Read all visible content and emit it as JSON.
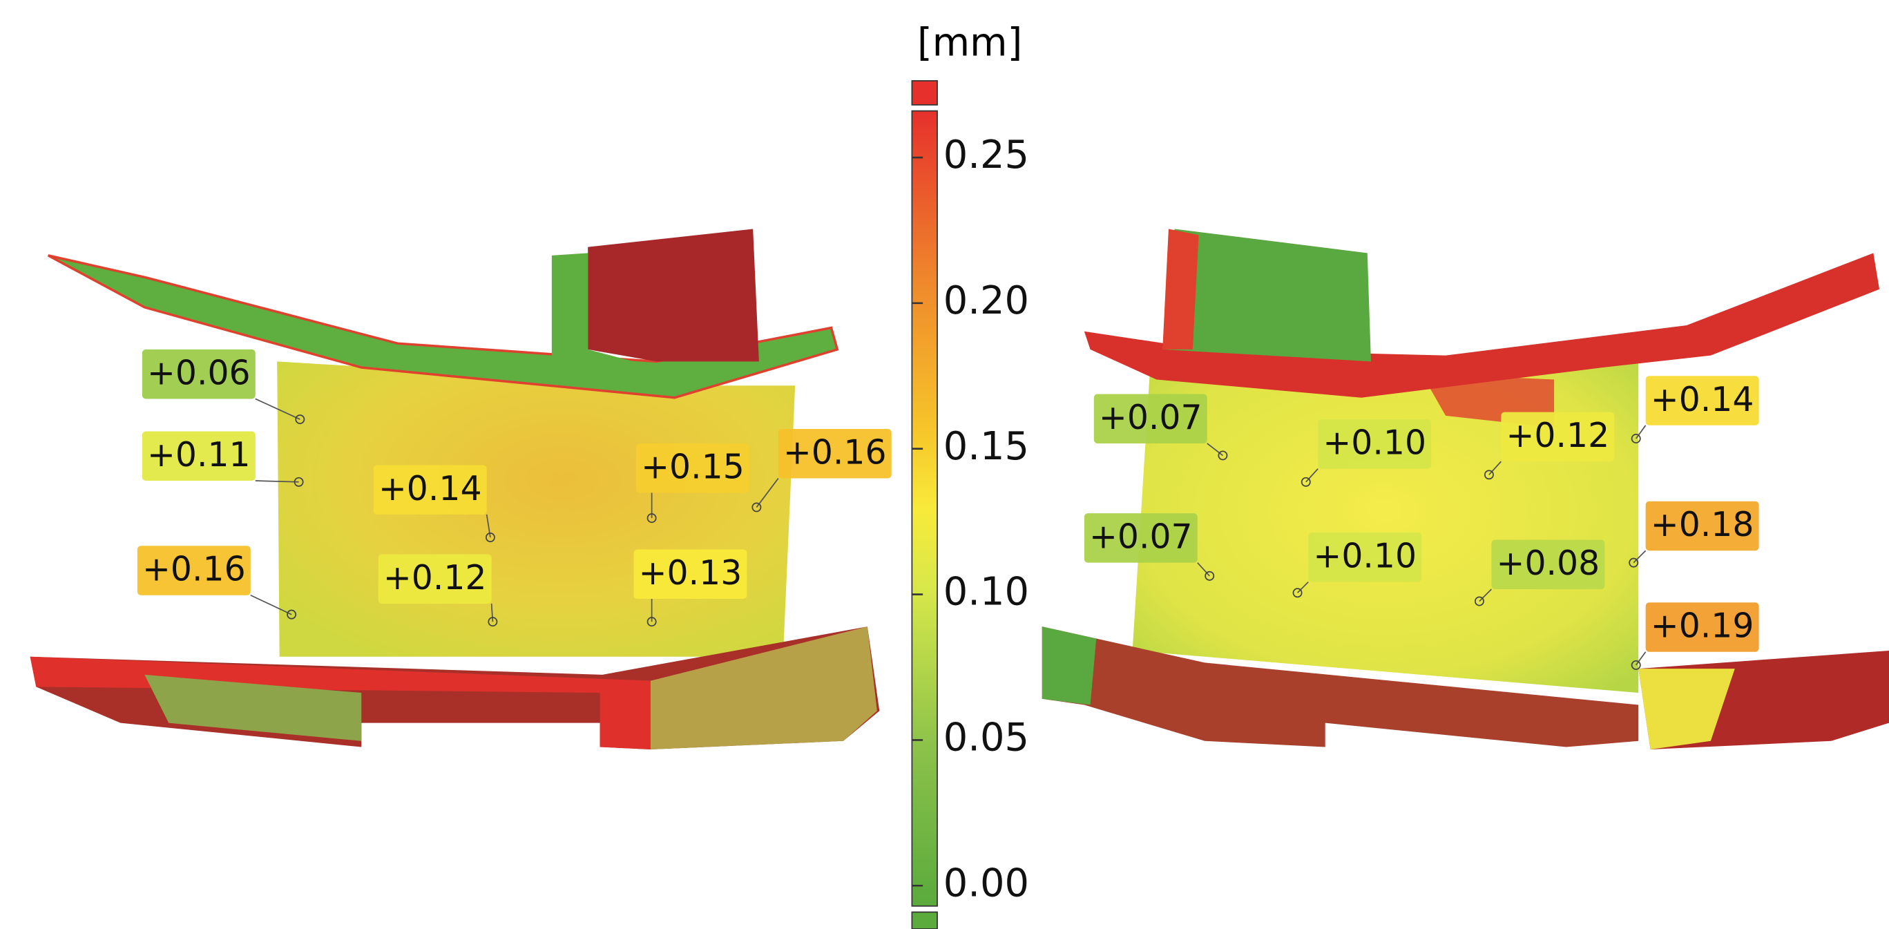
{
  "legend": {
    "unit": "[mm]",
    "range": [
      -0.007,
      0.266
    ],
    "ticks": [
      {
        "value": 0.25,
        "label": "0.25"
      },
      {
        "value": 0.2,
        "label": "0.20"
      },
      {
        "value": 0.15,
        "label": "0.15"
      },
      {
        "value": 0.1,
        "label": "0.10"
      },
      {
        "value": 0.05,
        "label": "0.05"
      },
      {
        "value": 0,
        "label": "0.00"
      }
    ]
  },
  "left_part": {
    "callouts": [
      {
        "value": 0.06,
        "label": "+0.06"
      },
      {
        "value": 0.11,
        "label": "+0.11"
      },
      {
        "value": 0.16,
        "label": "+0.16"
      },
      {
        "value": 0.14,
        "label": "+0.14"
      },
      {
        "value": 0.12,
        "label": "+0.12"
      },
      {
        "value": 0.15,
        "label": "+0.15"
      },
      {
        "value": 0.16,
        "label": "+0.16"
      },
      {
        "value": 0.13,
        "label": "+0.13"
      }
    ]
  },
  "right_part": {
    "callouts": [
      {
        "value": 0.07,
        "label": "+0.07"
      },
      {
        "value": 0.1,
        "label": "+0.10"
      },
      {
        "value": 0.12,
        "label": "+0.12"
      },
      {
        "value": 0.14,
        "label": "+0.14"
      },
      {
        "value": 0.07,
        "label": "+0.07"
      },
      {
        "value": 0.1,
        "label": "+0.10"
      },
      {
        "value": 0.08,
        "label": "+0.08"
      },
      {
        "value": 0.18,
        "label": "+0.18"
      },
      {
        "value": 0.19,
        "label": "+0.19"
      }
    ]
  }
}
